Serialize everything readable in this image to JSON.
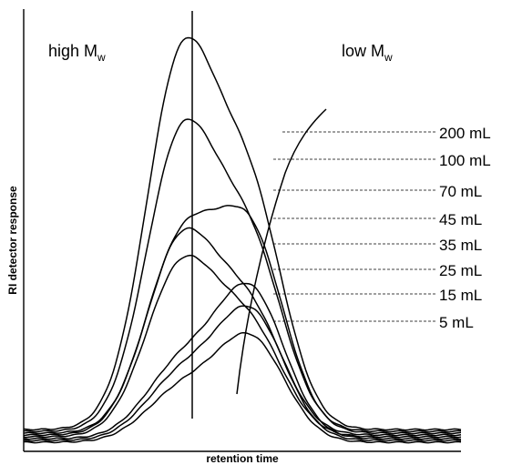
{
  "chart_data": {
    "type": "line",
    "title": "",
    "xlabel": "retention time",
    "ylabel": "RI detector response",
    "grid": false,
    "annotations": {
      "left": {
        "text": "high M",
        "sub": "w"
      },
      "right": {
        "text": "low M",
        "sub": "w"
      }
    },
    "series": [
      {
        "name": "200 mL",
        "peak_y": 455,
        "peak_x": 0.36
      },
      {
        "name": "100 mL",
        "peak_y": 365,
        "peak_x": 0.36
      },
      {
        "name": "70 mL",
        "peak_y": 270,
        "peak_x": 0.56
      },
      {
        "name": "45 mL",
        "peak_y": 245,
        "peak_x": 0.38
      },
      {
        "name": "35 mL",
        "peak_y": 215,
        "peak_x": 0.38
      },
      {
        "name": "25 mL",
        "peak_y": 185,
        "peak_x": 0.5
      },
      {
        "name": "15 mL",
        "peak_y": 160,
        "peak_x": 0.5
      },
      {
        "name": "5 mL",
        "peak_y": 130,
        "peak_x": 0.5
      }
    ]
  }
}
